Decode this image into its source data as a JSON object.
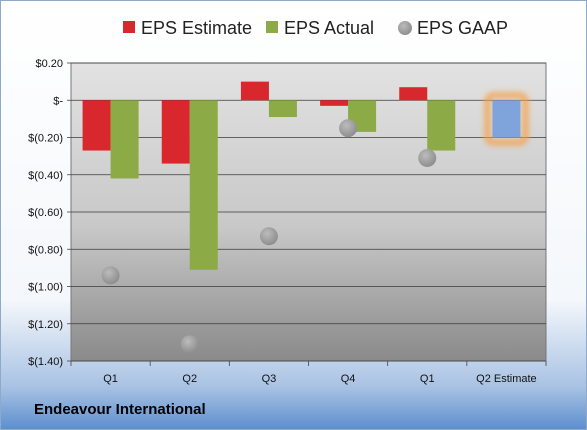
{
  "company": "Endeavour International",
  "colors": {
    "estimate": "#d8272d",
    "actual": "#8caa45",
    "gaap": "#a8a8a8",
    "future_estimate": "#7fa4dc",
    "future_glow": "#f5a24a"
  },
  "chart_data": {
    "type": "bar",
    "title": "",
    "xlabel": "",
    "ylabel": "",
    "categories": [
      "Q1",
      "Q2",
      "Q3",
      "Q4",
      "Q1",
      "Q2 Estimate"
    ],
    "series": [
      {
        "name": "EPS Estimate",
        "kind": "bar",
        "values": [
          -0.27,
          -0.34,
          0.1,
          -0.03,
          0.07,
          -0.2
        ]
      },
      {
        "name": "EPS Actual",
        "kind": "bar",
        "values": [
          -0.42,
          -0.91,
          -0.09,
          -0.17,
          -0.27,
          null
        ]
      },
      {
        "name": "EPS GAAP",
        "kind": "marker",
        "values": [
          -0.94,
          -1.31,
          -0.73,
          -0.15,
          -0.31,
          null
        ]
      }
    ],
    "ylim": [
      -1.4,
      0.2
    ],
    "yticks": [
      {
        "value": 0.2,
        "label": "$0.20"
      },
      {
        "value": 0.0,
        "label": "$-"
      },
      {
        "value": -0.2,
        "label": "$(0.20)"
      },
      {
        "value": -0.4,
        "label": "$(0.40)"
      },
      {
        "value": -0.6,
        "label": "$(0.60)"
      },
      {
        "value": -0.8,
        "label": "$(0.80)"
      },
      {
        "value": -1.0,
        "label": "$(1.00)"
      },
      {
        "value": -1.2,
        "label": "$(1.20)"
      },
      {
        "value": -1.4,
        "label": "$(1.40)"
      }
    ],
    "grid": true,
    "legend_position": "top"
  }
}
